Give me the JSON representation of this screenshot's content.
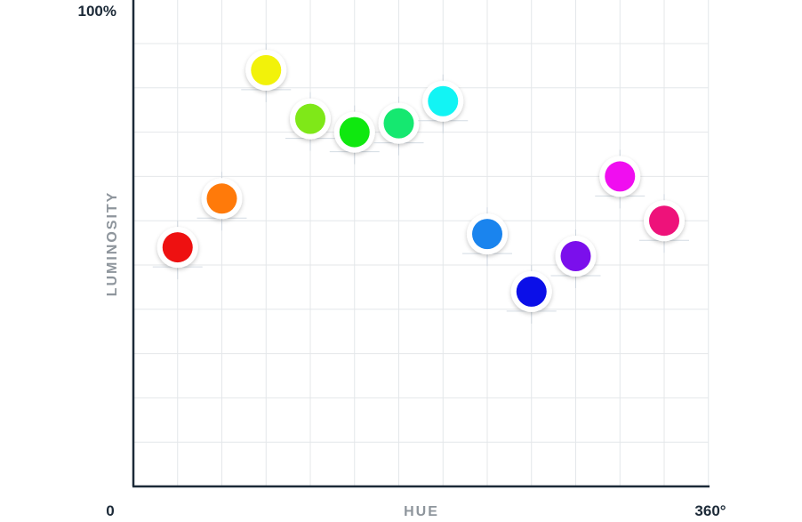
{
  "chart_data": {
    "type": "scatter",
    "title": "",
    "xlabel": "HUE",
    "ylabel": "LUMINOSITY",
    "x_tick_labels": {
      "min": "0",
      "max": "360°"
    },
    "y_tick_labels": {
      "max": "100%"
    },
    "xlim": [
      0,
      360
    ],
    "ylim": [
      0,
      100
    ],
    "grid": true,
    "legend": "none",
    "points": [
      {
        "x": 30,
        "y": 54,
        "color": "#ee1111"
      },
      {
        "x": 60,
        "y": 65,
        "color": "#ff7a0a"
      },
      {
        "x": 90,
        "y": 94,
        "color": "#f2f20a"
      },
      {
        "x": 120,
        "y": 83,
        "color": "#7fe818"
      },
      {
        "x": 150,
        "y": 80,
        "color": "#0fe80f"
      },
      {
        "x": 180,
        "y": 82,
        "color": "#15e870"
      },
      {
        "x": 210,
        "y": 87,
        "color": "#12f4f4"
      },
      {
        "x": 240,
        "y": 57,
        "color": "#1a84ee"
      },
      {
        "x": 270,
        "y": 44,
        "color": "#0b0fe8"
      },
      {
        "x": 300,
        "y": 52,
        "color": "#7b0fec"
      },
      {
        "x": 330,
        "y": 70,
        "color": "#f00ef0"
      },
      {
        "x": 360,
        "y": 60,
        "color": "#ee127a"
      }
    ]
  }
}
